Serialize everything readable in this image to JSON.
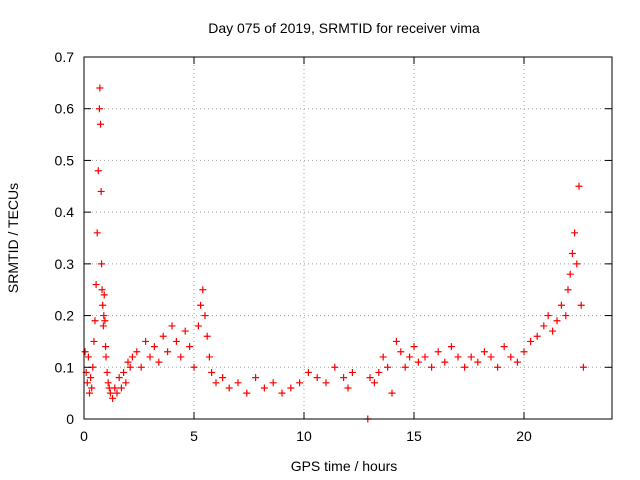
{
  "chart_data": {
    "type": "scatter",
    "title": "Day 075 of 2019, SRMTID for receiver vima",
    "xlabel": "GPS time / hours",
    "ylabel": "SRMTID / TECUs",
    "xlim": [
      0,
      24
    ],
    "ylim": [
      0,
      0.7
    ],
    "xticks": [
      0,
      5,
      10,
      15,
      20
    ],
    "yticks": [
      0,
      0.1,
      0.2,
      0.3,
      0.4,
      0.5,
      0.6,
      0.7
    ],
    "grid": true,
    "marker": "+",
    "series_color": "#ff0000",
    "series": [
      {
        "name": "SRMTID",
        "x": [
          0.05,
          0.1,
          0.15,
          0.2,
          0.25,
          0.3,
          0.35,
          0.4,
          0.45,
          0.5,
          0.55,
          0.6,
          0.65,
          0.7,
          0.72,
          0.75,
          0.78,
          0.8,
          0.82,
          0.85,
          0.88,
          0.9,
          0.92,
          0.95,
          0.98,
          1.0,
          1.05,
          1.1,
          1.15,
          1.2,
          1.3,
          1.4,
          1.5,
          1.6,
          1.7,
          1.8,
          1.9,
          2.0,
          2.1,
          2.2,
          2.4,
          2.6,
          2.8,
          3.0,
          3.2,
          3.4,
          3.6,
          3.8,
          4.0,
          4.2,
          4.4,
          4.6,
          4.8,
          5.0,
          5.2,
          5.3,
          5.4,
          5.5,
          5.6,
          5.7,
          5.8,
          6.0,
          6.3,
          6.6,
          7.0,
          7.4,
          7.8,
          8.2,
          8.6,
          9.0,
          9.4,
          9.8,
          10.2,
          10.6,
          11.0,
          11.4,
          11.8,
          12.0,
          12.2,
          12.9,
          13.0,
          13.2,
          13.4,
          13.6,
          13.8,
          14.0,
          14.2,
          14.4,
          14.6,
          14.8,
          15.0,
          15.2,
          15.5,
          15.8,
          16.1,
          16.4,
          16.7,
          17.0,
          17.3,
          17.6,
          17.9,
          18.2,
          18.5,
          18.8,
          19.1,
          19.4,
          19.7,
          20.0,
          20.3,
          20.6,
          20.9,
          21.1,
          21.3,
          21.5,
          21.7,
          21.9,
          22.0,
          22.1,
          22.2,
          22.3,
          22.4,
          22.5,
          22.6,
          22.7
        ],
        "y": [
          0.13,
          0.09,
          0.07,
          0.12,
          0.05,
          0.08,
          0.06,
          0.1,
          0.15,
          0.19,
          0.26,
          0.36,
          0.48,
          0.6,
          0.64,
          0.57,
          0.44,
          0.3,
          0.25,
          0.22,
          0.18,
          0.2,
          0.24,
          0.19,
          0.14,
          0.12,
          0.09,
          0.07,
          0.06,
          0.05,
          0.04,
          0.06,
          0.05,
          0.08,
          0.06,
          0.09,
          0.07,
          0.11,
          0.1,
          0.12,
          0.13,
          0.1,
          0.15,
          0.12,
          0.14,
          0.11,
          0.16,
          0.13,
          0.18,
          0.15,
          0.12,
          0.17,
          0.14,
          0.1,
          0.18,
          0.22,
          0.25,
          0.2,
          0.16,
          0.12,
          0.09,
          0.07,
          0.08,
          0.06,
          0.07,
          0.05,
          0.08,
          0.06,
          0.07,
          0.05,
          0.06,
          0.07,
          0.09,
          0.08,
          0.07,
          0.1,
          0.08,
          0.06,
          0.09,
          0.0,
          0.08,
          0.07,
          0.09,
          0.12,
          0.1,
          0.05,
          0.15,
          0.13,
          0.1,
          0.12,
          0.14,
          0.11,
          0.12,
          0.1,
          0.13,
          0.11,
          0.14,
          0.12,
          0.1,
          0.12,
          0.11,
          0.13,
          0.12,
          0.1,
          0.14,
          0.12,
          0.11,
          0.13,
          0.15,
          0.16,
          0.18,
          0.2,
          0.17,
          0.19,
          0.22,
          0.2,
          0.25,
          0.28,
          0.32,
          0.36,
          0.3,
          0.45,
          0.22,
          0.1
        ]
      }
    ]
  }
}
